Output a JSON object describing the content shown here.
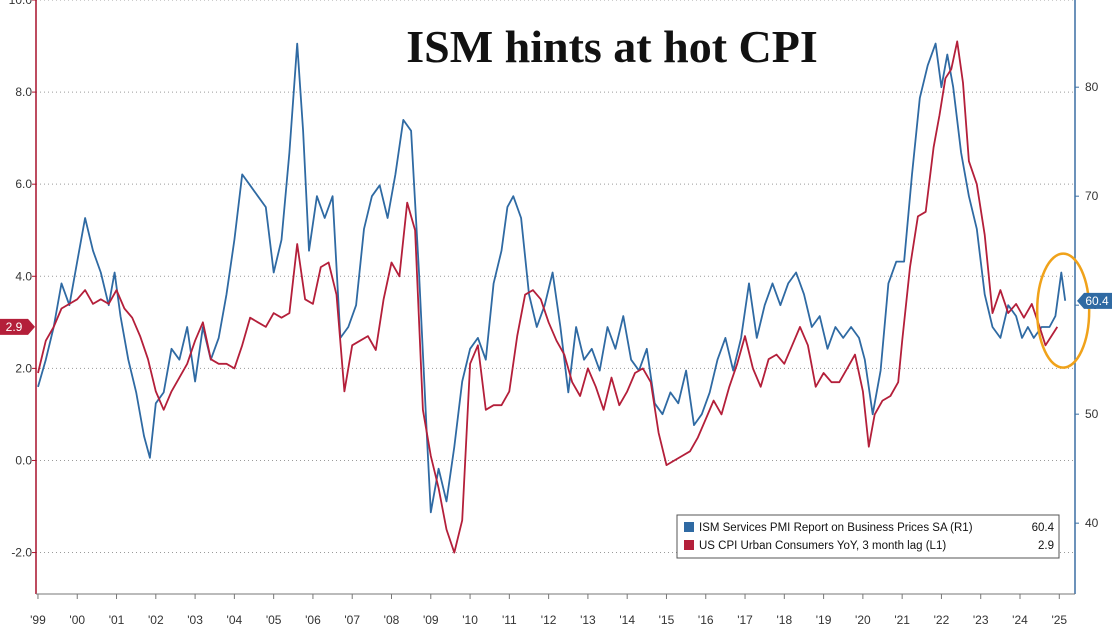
{
  "chart_data": {
    "type": "line",
    "title": "ISM hints at hot CPI",
    "xlabel": "",
    "x_ticks": [
      "'99",
      "'00",
      "'01",
      "'02",
      "'03",
      "'04",
      "'05",
      "'06",
      "'07",
      "'08",
      "'09",
      "'10",
      "'11",
      "'12",
      "'13",
      "'14",
      "'15",
      "'16",
      "'17",
      "'18",
      "'19",
      "'20",
      "'21",
      "'22",
      "'23",
      "'24",
      "'25"
    ],
    "x_range": [
      1998.95,
      2025.4
    ],
    "y_left": {
      "ticks": [
        "10.0",
        "8.0",
        "6.0",
        "4.0",
        "2.0",
        "0.0",
        "-2.0"
      ],
      "range": [
        -2.9,
        10.0
      ],
      "color": "#a8112b"
    },
    "y_right": {
      "ticks": [
        "80",
        "70",
        "60",
        "50",
        "40"
      ],
      "range": [
        33.5,
        88.0
      ],
      "color": "#3b6fa3"
    },
    "grid": "dotted horizontal",
    "legend_position": "bottom-right",
    "series": [
      {
        "name": "ISM Services PMI Report on Business Prices SA (R1)",
        "last_value": "60.4",
        "axis": "right",
        "color": "#2f6aa3",
        "points": [
          [
            1999.0,
            52.5
          ],
          [
            1999.2,
            55
          ],
          [
            1999.4,
            58
          ],
          [
            1999.6,
            62
          ],
          [
            1999.8,
            60
          ],
          [
            2000.0,
            64
          ],
          [
            2000.2,
            68
          ],
          [
            2000.4,
            65
          ],
          [
            2000.6,
            63
          ],
          [
            2000.8,
            60
          ],
          [
            2000.95,
            63
          ],
          [
            2001.1,
            59
          ],
          [
            2001.3,
            55
          ],
          [
            2001.5,
            52
          ],
          [
            2001.7,
            48
          ],
          [
            2001.85,
            46
          ],
          [
            2002.0,
            51
          ],
          [
            2002.2,
            52
          ],
          [
            2002.4,
            56
          ],
          [
            2002.6,
            55
          ],
          [
            2002.8,
            58
          ],
          [
            2003.0,
            53
          ],
          [
            2003.2,
            58
          ],
          [
            2003.4,
            55
          ],
          [
            2003.6,
            57
          ],
          [
            2003.8,
            61
          ],
          [
            2004.0,
            66
          ],
          [
            2004.2,
            72
          ],
          [
            2004.4,
            71
          ],
          [
            2004.6,
            70
          ],
          [
            2004.8,
            69
          ],
          [
            2005.0,
            63
          ],
          [
            2005.2,
            66
          ],
          [
            2005.4,
            74
          ],
          [
            2005.6,
            84
          ],
          [
            2005.75,
            76
          ],
          [
            2005.9,
            65
          ],
          [
            2006.1,
            70
          ],
          [
            2006.3,
            68
          ],
          [
            2006.5,
            70
          ],
          [
            2006.7,
            57
          ],
          [
            2006.9,
            58
          ],
          [
            2007.1,
            60
          ],
          [
            2007.3,
            67
          ],
          [
            2007.5,
            70
          ],
          [
            2007.7,
            71
          ],
          [
            2007.9,
            68
          ],
          [
            2008.1,
            72
          ],
          [
            2008.3,
            77
          ],
          [
            2008.5,
            76
          ],
          [
            2008.7,
            63
          ],
          [
            2008.9,
            48
          ],
          [
            2009.0,
            41
          ],
          [
            2009.2,
            45
          ],
          [
            2009.4,
            42
          ],
          [
            2009.6,
            47
          ],
          [
            2009.8,
            53
          ],
          [
            2010.0,
            56
          ],
          [
            2010.2,
            57
          ],
          [
            2010.4,
            55
          ],
          [
            2010.6,
            62
          ],
          [
            2010.8,
            65
          ],
          [
            2010.95,
            69
          ],
          [
            2011.1,
            70
          ],
          [
            2011.3,
            68
          ],
          [
            2011.5,
            61
          ],
          [
            2011.7,
            58
          ],
          [
            2011.9,
            60
          ],
          [
            2012.1,
            63
          ],
          [
            2012.3,
            58
          ],
          [
            2012.5,
            52
          ],
          [
            2012.7,
            58
          ],
          [
            2012.9,
            55
          ],
          [
            2013.1,
            56
          ],
          [
            2013.3,
            54
          ],
          [
            2013.5,
            58
          ],
          [
            2013.7,
            56
          ],
          [
            2013.9,
            59
          ],
          [
            2014.1,
            55
          ],
          [
            2014.3,
            54
          ],
          [
            2014.5,
            56
          ],
          [
            2014.7,
            51
          ],
          [
            2014.9,
            50
          ],
          [
            2015.1,
            52
          ],
          [
            2015.3,
            51
          ],
          [
            2015.5,
            54
          ],
          [
            2015.7,
            49
          ],
          [
            2015.9,
            50
          ],
          [
            2016.1,
            52
          ],
          [
            2016.3,
            55
          ],
          [
            2016.5,
            57
          ],
          [
            2016.7,
            54
          ],
          [
            2016.9,
            57
          ],
          [
            2017.1,
            62
          ],
          [
            2017.3,
            57
          ],
          [
            2017.5,
            60
          ],
          [
            2017.7,
            62
          ],
          [
            2017.9,
            60
          ],
          [
            2018.1,
            62
          ],
          [
            2018.3,
            63
          ],
          [
            2018.5,
            61
          ],
          [
            2018.7,
            58
          ],
          [
            2018.9,
            59
          ],
          [
            2019.1,
            56
          ],
          [
            2019.3,
            58
          ],
          [
            2019.5,
            57
          ],
          [
            2019.7,
            58
          ],
          [
            2019.9,
            57
          ],
          [
            2020.05,
            55
          ],
          [
            2020.25,
            50
          ],
          [
            2020.45,
            54
          ],
          [
            2020.65,
            62
          ],
          [
            2020.85,
            64
          ],
          [
            2021.05,
            64
          ],
          [
            2021.25,
            72
          ],
          [
            2021.45,
            79
          ],
          [
            2021.65,
            82
          ],
          [
            2021.85,
            84
          ],
          [
            2022.0,
            80
          ],
          [
            2022.15,
            83
          ],
          [
            2022.3,
            80
          ],
          [
            2022.5,
            74
          ],
          [
            2022.7,
            70
          ],
          [
            2022.9,
            67
          ],
          [
            2023.1,
            61
          ],
          [
            2023.3,
            58
          ],
          [
            2023.5,
            57
          ],
          [
            2023.7,
            60
          ],
          [
            2023.9,
            59
          ],
          [
            2024.05,
            57
          ],
          [
            2024.2,
            58
          ],
          [
            2024.35,
            57
          ],
          [
            2024.55,
            58
          ],
          [
            2024.75,
            58
          ],
          [
            2024.9,
            59
          ],
          [
            2025.05,
            63
          ],
          [
            2025.15,
            60.4
          ]
        ]
      },
      {
        "name": "US CPI Urban Consumers YoY, 3 month lag (L1)",
        "last_value": "2.9",
        "axis": "left",
        "color": "#b41f3a",
        "points": [
          [
            1999.0,
            1.9
          ],
          [
            1999.2,
            2.6
          ],
          [
            1999.4,
            2.9
          ],
          [
            1999.6,
            3.3
          ],
          [
            1999.8,
            3.4
          ],
          [
            2000.0,
            3.5
          ],
          [
            2000.2,
            3.7
          ],
          [
            2000.4,
            3.4
          ],
          [
            2000.6,
            3.5
          ],
          [
            2000.8,
            3.4
          ],
          [
            2001.0,
            3.7
          ],
          [
            2001.2,
            3.3
          ],
          [
            2001.4,
            3.1
          ],
          [
            2001.6,
            2.7
          ],
          [
            2001.8,
            2.2
          ],
          [
            2002.0,
            1.5
          ],
          [
            2002.2,
            1.1
          ],
          [
            2002.4,
            1.5
          ],
          [
            2002.6,
            1.8
          ],
          [
            2002.8,
            2.1
          ],
          [
            2003.0,
            2.6
          ],
          [
            2003.2,
            3.0
          ],
          [
            2003.4,
            2.2
          ],
          [
            2003.6,
            2.1
          ],
          [
            2003.8,
            2.1
          ],
          [
            2004.0,
            2.0
          ],
          [
            2004.2,
            2.5
          ],
          [
            2004.4,
            3.1
          ],
          [
            2004.6,
            3.0
          ],
          [
            2004.8,
            2.9
          ],
          [
            2005.0,
            3.2
          ],
          [
            2005.2,
            3.1
          ],
          [
            2005.4,
            3.2
          ],
          [
            2005.6,
            4.7
          ],
          [
            2005.8,
            3.5
          ],
          [
            2006.0,
            3.4
          ],
          [
            2006.2,
            4.2
          ],
          [
            2006.4,
            4.3
          ],
          [
            2006.6,
            3.6
          ],
          [
            2006.8,
            1.5
          ],
          [
            2007.0,
            2.5
          ],
          [
            2007.2,
            2.6
          ],
          [
            2007.4,
            2.7
          ],
          [
            2007.6,
            2.4
          ],
          [
            2007.8,
            3.5
          ],
          [
            2008.0,
            4.3
          ],
          [
            2008.2,
            4.0
          ],
          [
            2008.4,
            5.6
          ],
          [
            2008.6,
            5.0
          ],
          [
            2008.8,
            1.1
          ],
          [
            2009.0,
            0.1
          ],
          [
            2009.2,
            -0.6
          ],
          [
            2009.4,
            -1.5
          ],
          [
            2009.6,
            -2.0
          ],
          [
            2009.8,
            -1.3
          ],
          [
            2010.0,
            2.1
          ],
          [
            2010.2,
            2.5
          ],
          [
            2010.4,
            1.1
          ],
          [
            2010.6,
            1.2
          ],
          [
            2010.8,
            1.2
          ],
          [
            2011.0,
            1.5
          ],
          [
            2011.2,
            2.7
          ],
          [
            2011.4,
            3.6
          ],
          [
            2011.6,
            3.7
          ],
          [
            2011.8,
            3.5
          ],
          [
            2012.0,
            3.0
          ],
          [
            2012.2,
            2.6
          ],
          [
            2012.4,
            2.3
          ],
          [
            2012.6,
            1.7
          ],
          [
            2012.8,
            1.4
          ],
          [
            2013.0,
            2.0
          ],
          [
            2013.2,
            1.6
          ],
          [
            2013.4,
            1.1
          ],
          [
            2013.6,
            1.8
          ],
          [
            2013.8,
            1.2
          ],
          [
            2014.0,
            1.5
          ],
          [
            2014.2,
            1.9
          ],
          [
            2014.4,
            2.0
          ],
          [
            2014.6,
            1.7
          ],
          [
            2014.8,
            0.6
          ],
          [
            2015.0,
            -0.1
          ],
          [
            2015.2,
            0.0
          ],
          [
            2015.4,
            0.1
          ],
          [
            2015.6,
            0.2
          ],
          [
            2015.8,
            0.5
          ],
          [
            2016.0,
            0.9
          ],
          [
            2016.2,
            1.3
          ],
          [
            2016.4,
            1.0
          ],
          [
            2016.6,
            1.6
          ],
          [
            2016.8,
            2.1
          ],
          [
            2017.0,
            2.7
          ],
          [
            2017.2,
            2.0
          ],
          [
            2017.4,
            1.6
          ],
          [
            2017.6,
            2.2
          ],
          [
            2017.8,
            2.3
          ],
          [
            2018.0,
            2.1
          ],
          [
            2018.2,
            2.5
          ],
          [
            2018.4,
            2.9
          ],
          [
            2018.6,
            2.5
          ],
          [
            2018.8,
            1.6
          ],
          [
            2019.0,
            1.9
          ],
          [
            2019.2,
            1.7
          ],
          [
            2019.4,
            1.7
          ],
          [
            2019.6,
            2.0
          ],
          [
            2019.8,
            2.3
          ],
          [
            2020.0,
            1.5
          ],
          [
            2020.15,
            0.3
          ],
          [
            2020.3,
            1.0
          ],
          [
            2020.5,
            1.3
          ],
          [
            2020.7,
            1.4
          ],
          [
            2020.9,
            1.7
          ],
          [
            2021.0,
            2.6
          ],
          [
            2021.2,
            4.2
          ],
          [
            2021.4,
            5.3
          ],
          [
            2021.6,
            5.4
          ],
          [
            2021.8,
            6.8
          ],
          [
            2021.95,
            7.5
          ],
          [
            2022.1,
            8.3
          ],
          [
            2022.25,
            8.5
          ],
          [
            2022.4,
            9.1
          ],
          [
            2022.55,
            8.2
          ],
          [
            2022.7,
            6.5
          ],
          [
            2022.9,
            6.0
          ],
          [
            2023.1,
            4.9
          ],
          [
            2023.3,
            3.2
          ],
          [
            2023.5,
            3.7
          ],
          [
            2023.7,
            3.2
          ],
          [
            2023.9,
            3.4
          ],
          [
            2024.1,
            3.1
          ],
          [
            2024.3,
            3.4
          ],
          [
            2024.5,
            2.9
          ],
          [
            2024.65,
            2.5
          ],
          [
            2024.8,
            2.7
          ],
          [
            2024.95,
            2.9
          ]
        ]
      }
    ]
  }
}
